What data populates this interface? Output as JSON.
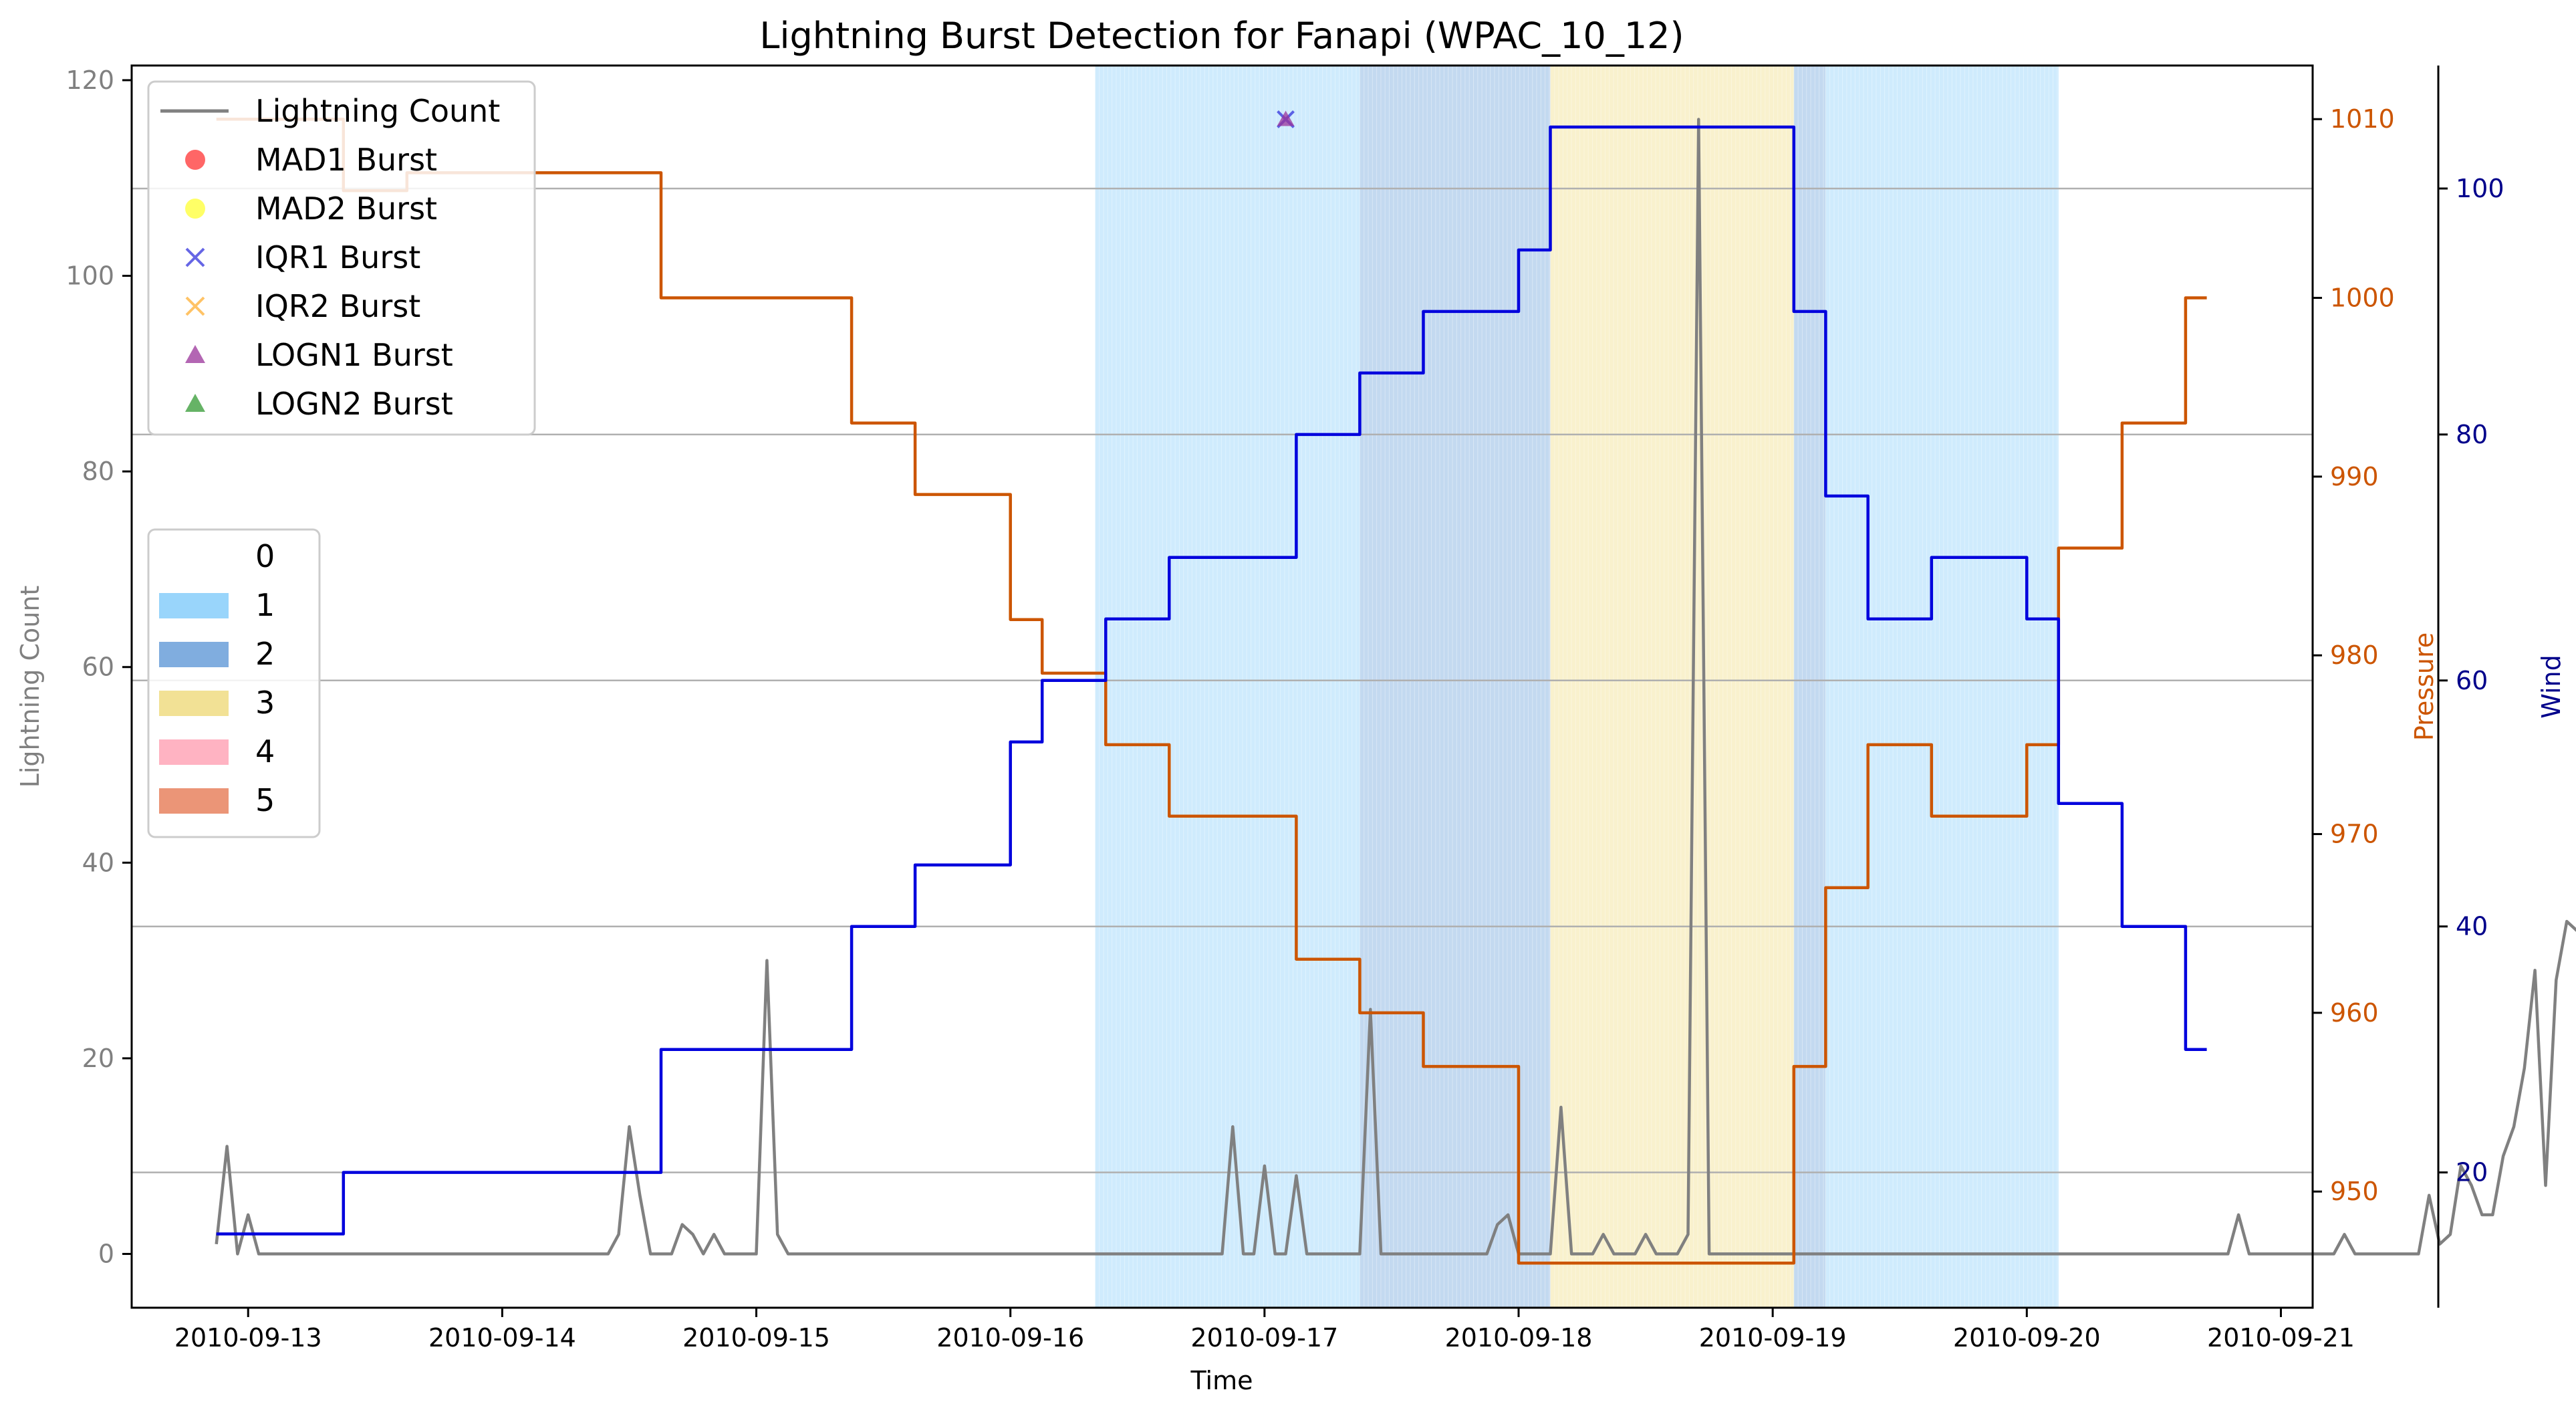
{
  "chart_data": {
    "type": "line",
    "title": "Lightning Burst Detection for Fanapi (WPAC_10_12)",
    "xlabel": "Time",
    "ylabel": "Lightning Count",
    "y2label": "Pressure",
    "y3label": "Wind",
    "xlim": [
      "2010-09-12 13:00",
      "2010-09-21 03:00"
    ],
    "ylim": [
      -5.5,
      121.5
    ],
    "y2lim": [
      943.5,
      1013.0
    ],
    "y3lim": [
      9.0,
      110.0
    ],
    "xticks": [
      "2010-09-13",
      "2010-09-14",
      "2010-09-15",
      "2010-09-16",
      "2010-09-17",
      "2010-09-18",
      "2010-09-19",
      "2010-09-20",
      "2010-09-21"
    ],
    "yticks": [
      0,
      20,
      40,
      60,
      80,
      100,
      120
    ],
    "y2ticks": [
      950,
      960,
      970,
      980,
      990,
      1000,
      1010
    ],
    "y3ticks": [
      20,
      40,
      60,
      80,
      100
    ],
    "grid": "horizontal lines at wind-axis ticks",
    "colors": {
      "lightning": "#808080",
      "pressure": "#cc5500",
      "wind": "#0000dd",
      "grid": "#b0b0b0",
      "category_1": "#87cefa",
      "category_2": "#6a9fd9",
      "category_3": "#f0dc82",
      "category_4": "#ffa6b7",
      "category_5": "#e8825f",
      "mad1": "#ff3333",
      "mad2": "#ffff33",
      "iqr1": "#3333dd",
      "iqr2": "#ffb033",
      "logn1": "#993399",
      "logn2": "#339933",
      "pressure_axis_text": "#cc5500",
      "wind_axis_text": "#00008b",
      "count_axis_text": "#808080"
    },
    "legend_markers": {
      "position": "top-left",
      "entries": [
        {
          "label": "Lightning Count",
          "marker": "line"
        },
        {
          "label": "MAD1 Burst",
          "marker": "circle"
        },
        {
          "label": "MAD2 Burst",
          "marker": "circle"
        },
        {
          "label": "IQR1 Burst",
          "marker": "x"
        },
        {
          "label": "IQR2 Burst",
          "marker": "x"
        },
        {
          "label": "LOGN1 Burst",
          "marker": "triangle"
        },
        {
          "label": "LOGN2 Burst",
          "marker": "triangle"
        }
      ]
    },
    "legend_categories": {
      "position": "center-left",
      "entries": [
        "0",
        "1",
        "2",
        "3",
        "4",
        "5"
      ]
    },
    "category_bands": [
      {
        "category": 1,
        "start": "2010-09-16 08:00",
        "end": "2010-09-17 09:00"
      },
      {
        "category": 2,
        "start": "2010-09-17 09:00",
        "end": "2010-09-18 03:00"
      },
      {
        "category": 3,
        "start": "2010-09-18 03:00",
        "end": "2010-09-19 02:00"
      },
      {
        "category": 2,
        "start": "2010-09-19 02:00",
        "end": "2010-09-19 05:00"
      },
      {
        "category": 1,
        "start": "2010-09-19 05:00",
        "end": "2010-09-20 03:00"
      }
    ],
    "wind": {
      "name": "Wind",
      "points": [
        [
          "2010-09-12 21:00",
          15
        ],
        [
          "2010-09-13 09:00",
          15
        ],
        [
          "2010-09-13 09:00",
          20
        ],
        [
          "2010-09-14 15:00",
          20
        ],
        [
          "2010-09-14 15:00",
          30
        ],
        [
          "2010-09-15 09:00",
          30
        ],
        [
          "2010-09-15 09:00",
          40
        ],
        [
          "2010-09-15 15:00",
          40
        ],
        [
          "2010-09-15 15:00",
          45
        ],
        [
          "2010-09-15 24:00",
          45
        ],
        [
          "2010-09-15 24:00",
          55
        ],
        [
          "2010-09-16 03:00",
          55
        ],
        [
          "2010-09-16 03:00",
          60
        ],
        [
          "2010-09-16 09:00",
          60
        ],
        [
          "2010-09-16 09:00",
          65
        ],
        [
          "2010-09-16 15:00",
          65
        ],
        [
          "2010-09-16 15:00",
          70
        ],
        [
          "2010-09-17 03:00",
          70
        ],
        [
          "2010-09-17 03:00",
          80
        ],
        [
          "2010-09-17 09:00",
          80
        ],
        [
          "2010-09-17 09:00",
          85
        ],
        [
          "2010-09-17 15:00",
          85
        ],
        [
          "2010-09-17 15:00",
          90
        ],
        [
          "2010-09-17 24:00",
          90
        ],
        [
          "2010-09-17 24:00",
          95
        ],
        [
          "2010-09-18 03:00",
          95
        ],
        [
          "2010-09-18 03:00",
          105
        ],
        [
          "2010-09-19 02:00",
          105
        ],
        [
          "2010-09-19 02:00",
          90
        ],
        [
          "2010-09-19 05:00",
          90
        ],
        [
          "2010-09-19 05:00",
          75
        ],
        [
          "2010-09-19 09:00",
          75
        ],
        [
          "2010-09-19 09:00",
          65
        ],
        [
          "2010-09-19 15:00",
          65
        ],
        [
          "2010-09-19 15:00",
          70
        ],
        [
          "2010-09-20 00:00",
          70
        ],
        [
          "2010-09-20 00:00",
          65
        ],
        [
          "2010-09-20 03:00",
          65
        ],
        [
          "2010-09-20 03:00",
          50
        ],
        [
          "2010-09-20 09:00",
          50
        ],
        [
          "2010-09-20 09:00",
          40
        ],
        [
          "2010-09-20 15:00",
          40
        ],
        [
          "2010-09-20 15:00",
          30
        ],
        [
          "2010-09-20 17:00",
          30
        ]
      ]
    },
    "pressure": {
      "name": "Pressure",
      "points": [
        [
          "2010-09-12 21:00",
          1010
        ],
        [
          "2010-09-13 09:00",
          1010
        ],
        [
          "2010-09-13 09:00",
          1006
        ],
        [
          "2010-09-13 15:00",
          1006
        ],
        [
          "2010-09-13 15:00",
          1007
        ],
        [
          "2010-09-14 15:00",
          1007
        ],
        [
          "2010-09-14 15:00",
          1000
        ],
        [
          "2010-09-15 09:00",
          1000
        ],
        [
          "2010-09-15 09:00",
          993
        ],
        [
          "2010-09-15 15:00",
          993
        ],
        [
          "2010-09-15 15:00",
          989
        ],
        [
          "2010-09-15 24:00",
          989
        ],
        [
          "2010-09-15 24:00",
          982
        ],
        [
          "2010-09-16 03:00",
          982
        ],
        [
          "2010-09-16 03:00",
          979
        ],
        [
          "2010-09-16 09:00",
          979
        ],
        [
          "2010-09-16 09:00",
          975
        ],
        [
          "2010-09-16 15:00",
          975
        ],
        [
          "2010-09-16 15:00",
          971
        ],
        [
          "2010-09-17 03:00",
          971
        ],
        [
          "2010-09-17 03:00",
          963
        ],
        [
          "2010-09-17 09:00",
          963
        ],
        [
          "2010-09-17 09:00",
          960
        ],
        [
          "2010-09-17 15:00",
          960
        ],
        [
          "2010-09-17 15:00",
          957
        ],
        [
          "2010-09-17 24:00",
          957
        ],
        [
          "2010-09-17 24:00",
          946
        ],
        [
          "2010-09-19 02:00",
          946
        ],
        [
          "2010-09-19 02:00",
          957
        ],
        [
          "2010-09-19 05:00",
          957
        ],
        [
          "2010-09-19 05:00",
          967
        ],
        [
          "2010-09-19 09:00",
          967
        ],
        [
          "2010-09-19 09:00",
          975
        ],
        [
          "2010-09-19 15:00",
          975
        ],
        [
          "2010-09-19 15:00",
          971
        ],
        [
          "2010-09-20 00:00",
          971
        ],
        [
          "2010-09-20 00:00",
          975
        ],
        [
          "2010-09-20 03:00",
          975
        ],
        [
          "2010-09-20 03:00",
          986
        ],
        [
          "2010-09-20 09:00",
          986
        ],
        [
          "2010-09-20 09:00",
          993
        ],
        [
          "2010-09-20 15:00",
          993
        ],
        [
          "2010-09-20 15:00",
          1000
        ],
        [
          "2010-09-20 17:00",
          1000
        ]
      ]
    },
    "lightning": {
      "name": "Lightning Count",
      "points": [
        [
          "2010-09-12 21:00",
          1
        ],
        [
          "2010-09-12 22:00",
          11
        ],
        [
          "2010-09-12 23:00",
          0
        ],
        [
          "2010-09-13 00:00",
          4
        ],
        [
          "2010-09-13 01:00",
          0
        ],
        [
          "2010-09-14 10:00",
          0
        ],
        [
          "2010-09-14 11:00",
          2
        ],
        [
          "2010-09-14 12:00",
          13
        ],
        [
          "2010-09-14 13:00",
          6
        ],
        [
          "2010-09-14 14:00",
          0
        ],
        [
          "2010-09-14 16:00",
          0
        ],
        [
          "2010-09-14 17:00",
          3
        ],
        [
          "2010-09-14 18:00",
          2
        ],
        [
          "2010-09-14 19:00",
          0
        ],
        [
          "2010-09-14 20:00",
          2
        ],
        [
          "2010-09-14 21:00",
          0
        ],
        [
          "2010-09-14 22:00",
          0
        ],
        [
          "2010-09-14 23:00",
          2
        ],
        [
          "2010-09-14 24:00",
          0
        ],
        [
          "2010-09-15 00:30",
          0
        ],
        [
          "2010-09-14 21:30",
          0
        ],
        [
          "2010-09-14 22:30",
          0
        ],
        [
          "2010-09-14 23:30",
          0
        ],
        [
          "2010-09-14 23:40",
          0
        ],
        [
          "2010-09-14 24:00",
          0
        ],
        [
          "2010-09-14 19:00",
          0
        ]
      ],
      "series_points": [
        [
          "2010-09-12 21:00",
          1
        ],
        [
          "2010-09-12 22:00",
          11
        ],
        [
          "2010-09-12 23:00",
          0
        ],
        [
          "2010-09-13 00:00",
          4
        ],
        [
          "2010-09-13 01:00",
          0
        ],
        [
          "2010-09-14 10:00",
          0
        ],
        [
          "2010-09-14 11:00",
          2
        ],
        [
          "2010-09-14 12:00",
          13
        ],
        [
          "2010-09-14 13:00",
          6
        ],
        [
          "2010-09-14 14:00",
          0
        ],
        [
          "2010-09-14 17:00",
          0
        ],
        [
          "2010-09-14 18:00",
          3
        ],
        [
          "2010-09-14 19:00",
          2
        ],
        [
          "2010-09-14 19:30",
          0
        ],
        [
          "2010-09-14 20:00",
          2
        ],
        [
          "2010-09-14 21:00",
          0
        ],
        [
          "2010-09-14 22:00",
          0
        ],
        [
          "2010-09-14 23:00",
          0
        ],
        [
          "2010-09-15 00:00",
          0
        ],
        [
          "2010-09-14 24:00",
          0
        ],
        [
          "2010-09-14 20:30",
          0
        ],
        [
          "2010-09-14 21:30",
          0
        ],
        [
          "2010-09-14 22:30",
          0
        ],
        [
          "2010-09-14 23:30",
          0
        ],
        [
          "2010-09-14 24:00",
          0
        ],
        [
          "2010-09-14 24:00",
          0
        ]
      ]
    },
    "bursts": [
      {
        "type": "IQR1",
        "time": "2010-09-17 02:00",
        "value": 116
      },
      {
        "type": "LOGN1",
        "time": "2010-09-17 02:00",
        "value": 116
      }
    ]
  }
}
